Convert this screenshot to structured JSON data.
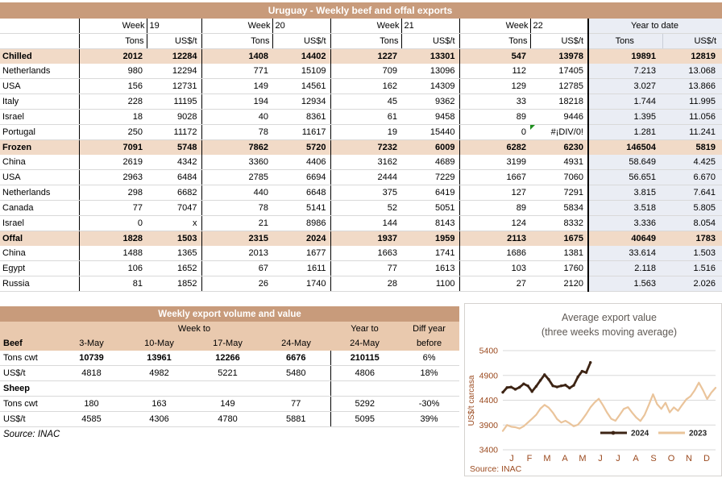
{
  "main_table": {
    "title": "Uruguay - Weekly beef and offal exports",
    "week_label": "Week",
    "week_numbers": [
      "19",
      "20",
      "21",
      "22"
    ],
    "ytd_label": "Year to date",
    "units": {
      "tons": "Tons",
      "us": "US$/t"
    },
    "rows": [
      {
        "label": "Chilled",
        "section": true,
        "values": [
          "2012",
          "12284",
          "1408",
          "14402",
          "1227",
          "13301",
          "547",
          "13978",
          "19891",
          "12819"
        ]
      },
      {
        "label": "Netherlands",
        "values": [
          "980",
          "12294",
          "771",
          "15109",
          "709",
          "13096",
          "112",
          "17405",
          "7.213",
          "13.068"
        ]
      },
      {
        "label": "USA",
        "values": [
          "156",
          "12731",
          "149",
          "14561",
          "162",
          "14309",
          "129",
          "12785",
          "3.027",
          "13.866"
        ]
      },
      {
        "label": "Italy",
        "values": [
          "228",
          "11195",
          "194",
          "12934",
          "45",
          "9362",
          "33",
          "18218",
          "1.744",
          "11.995"
        ]
      },
      {
        "label": "Israel",
        "values": [
          "18",
          "9028",
          "40",
          "8361",
          "61",
          "9458",
          "89",
          "9446",
          "1.395",
          "11.056"
        ]
      },
      {
        "label": "Portugal",
        "values": [
          "250",
          "11172",
          "78",
          "11617",
          "19",
          "15440",
          "0",
          "#¡DIV/0!",
          "1.281",
          "11.241"
        ],
        "flag": 7
      },
      {
        "label": "Frozen",
        "section": true,
        "values": [
          "7091",
          "5748",
          "7862",
          "5720",
          "7232",
          "6009",
          "6282",
          "6230",
          "146504",
          "5819"
        ]
      },
      {
        "label": "China",
        "values": [
          "2619",
          "4342",
          "3360",
          "4406",
          "3162",
          "4689",
          "3199",
          "4931",
          "58.649",
          "4.425"
        ]
      },
      {
        "label": "USA",
        "values": [
          "2963",
          "6484",
          "2785",
          "6694",
          "2444",
          "7229",
          "1667",
          "7060",
          "56.651",
          "6.670"
        ]
      },
      {
        "label": "Netherlands",
        "values": [
          "298",
          "6682",
          "440",
          "6648",
          "375",
          "6419",
          "127",
          "7291",
          "3.815",
          "7.641"
        ]
      },
      {
        "label": "Canada",
        "values": [
          "77",
          "7047",
          "78",
          "5141",
          "52",
          "5051",
          "89",
          "5834",
          "3.518",
          "5.805"
        ]
      },
      {
        "label": "Israel",
        "values": [
          "0",
          "x",
          "21",
          "8986",
          "144",
          "8143",
          "124",
          "8332",
          "3.336",
          "8.054"
        ]
      },
      {
        "label": "Offal",
        "section": true,
        "values": [
          "1828",
          "1503",
          "2315",
          "2024",
          "1937",
          "1959",
          "2113",
          "1675",
          "40649",
          "1783"
        ]
      },
      {
        "label": "China",
        "values": [
          "1488",
          "1365",
          "2013",
          "1677",
          "1663",
          "1741",
          "1686",
          "1381",
          "33.614",
          "1.503"
        ]
      },
      {
        "label": "Egypt",
        "values": [
          "106",
          "1652",
          "67",
          "1611",
          "77",
          "1613",
          "103",
          "1760",
          "2.118",
          "1.516"
        ]
      },
      {
        "label": "Russia",
        "values": [
          "81",
          "1852",
          "26",
          "1740",
          "28",
          "1100",
          "27",
          "2120",
          "1.563",
          "2.026"
        ]
      }
    ]
  },
  "weekly_table": {
    "title": "Weekly export volume and value",
    "header": {
      "week_to": "Week to",
      "year_to": "Year to",
      "diff1": "Diff year",
      "beef": "Beef",
      "dates": [
        "3-May",
        "10-May",
        "17-May",
        "24-May"
      ],
      "ytd_date": "24-May",
      "diff2": "before"
    },
    "rows": [
      {
        "label": "Tons cwt",
        "bold_values": true,
        "values": [
          "10739",
          "13961",
          "12266",
          "6676",
          "210115",
          "6%"
        ]
      },
      {
        "label": "US$/t",
        "values": [
          "4818",
          "4982",
          "5221",
          "5480",
          "4806",
          "18%"
        ]
      },
      {
        "label": "Sheep",
        "section": true,
        "values": [
          "",
          "",
          "",
          "",
          "",
          ""
        ]
      },
      {
        "label": "Tons cwt",
        "values": [
          "180",
          "163",
          "149",
          "77",
          "5292",
          "-30%"
        ]
      },
      {
        "label": "US$/t",
        "values": [
          "4585",
          "4306",
          "4780",
          "5881",
          "5095",
          "39%"
        ]
      }
    ],
    "source": "Source: INAC"
  },
  "chart_data": {
    "type": "line",
    "title": "Average export value",
    "subtitle": "(three weeks moving average)",
    "ylabel": "US$/t carcasa",
    "yticks": [
      3400,
      3900,
      4400,
      4900,
      5400
    ],
    "ylim": [
      3400,
      5400
    ],
    "xticklabels": [
      "J",
      "F",
      "M",
      "A",
      "M",
      "J",
      "J",
      "A",
      "S",
      "O",
      "N",
      "D"
    ],
    "grid": true,
    "legend_position": "inside-bottom-right",
    "source": "Source: INAC",
    "series": [
      {
        "name": "2023",
        "color": "#EAC49B",
        "values": [
          3780,
          3900,
          3865,
          3855,
          3830,
          3875,
          3950,
          4025,
          4105,
          4230,
          4305,
          4250,
          4150,
          4020,
          3950,
          3985,
          3935,
          3875,
          3905,
          4005,
          4120,
          4255,
          4355,
          4430,
          4300,
          4150,
          4025,
          3985,
          4100,
          4225,
          4260,
          4150,
          4050,
          3980,
          4105,
          4305,
          4520,
          4320,
          4225,
          4350,
          4155,
          4255,
          4185,
          4305,
          4420,
          4480,
          4600,
          4755,
          4600,
          4425,
          4555,
          4650
        ]
      },
      {
        "name": "2024",
        "color": "#3D2414",
        "values": [
          4560,
          4655,
          4665,
          4620,
          4660,
          4730,
          4690,
          4575,
          4680,
          4800,
          4915,
          4820,
          4690,
          4668,
          4690,
          4705,
          4645,
          4700,
          4870,
          4985,
          4958,
          5160
        ]
      }
    ],
    "colors": {
      "axis_text": "#9B4A1F",
      "title_text": "#5F5954",
      "grid": "#D9D9D9",
      "legend_text": "#262626"
    }
  }
}
